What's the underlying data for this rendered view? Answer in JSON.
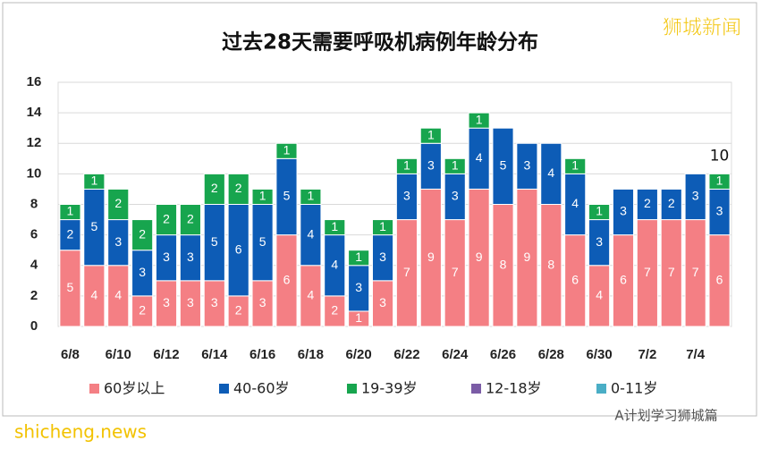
{
  "chart_data": {
    "type": "bar",
    "stacked": true,
    "title": "过去28天需要呼吸机病例年龄分布",
    "categories": [
      "6/8",
      null,
      "6/10",
      null,
      "6/12",
      null,
      "6/14",
      null,
      "6/16",
      null,
      "6/18",
      null,
      "6/20",
      null,
      "6/22",
      null,
      "6/24",
      null,
      "6/26",
      null,
      "6/28",
      null,
      "6/30",
      null,
      "7/2",
      null,
      "7/4",
      null
    ],
    "series": [
      {
        "name": "60岁以上",
        "color": "#f47f84",
        "values": [
          5,
          4,
          4,
          2,
          3,
          3,
          3,
          2,
          3,
          6,
          4,
          2,
          1,
          3,
          7,
          9,
          7,
          9,
          8,
          9,
          8,
          6,
          4,
          6,
          7,
          7,
          7,
          6
        ]
      },
      {
        "name": "40-60岁",
        "color": "#0d5cb6",
        "values": [
          2,
          5,
          3,
          3,
          3,
          3,
          5,
          6,
          5,
          5,
          4,
          4,
          3,
          3,
          3,
          3,
          3,
          4,
          5,
          3,
          4,
          4,
          3,
          3,
          2,
          2,
          3,
          3
        ]
      },
      {
        "name": "19-39岁",
        "color": "#17a54e",
        "values": [
          1,
          1,
          2,
          2,
          2,
          2,
          2,
          2,
          1,
          1,
          1,
          1,
          1,
          1,
          1,
          1,
          1,
          1,
          null,
          null,
          null,
          1,
          1,
          null,
          null,
          null,
          null,
          1
        ]
      },
      {
        "name": "12-18岁",
        "color": "#7b5ca6",
        "values": [
          null,
          null,
          null,
          null,
          null,
          null,
          null,
          null,
          null,
          null,
          null,
          null,
          null,
          null,
          null,
          null,
          null,
          null,
          null,
          null,
          null,
          null,
          null,
          null,
          null,
          null,
          null,
          null
        ]
      },
      {
        "name": "0-11岁",
        "color": "#4aaec6",
        "values": [
          null,
          null,
          null,
          null,
          null,
          null,
          null,
          null,
          null,
          null,
          null,
          null,
          null,
          null,
          null,
          null,
          null,
          null,
          null,
          null,
          null,
          null,
          null,
          null,
          null,
          null,
          null,
          null
        ]
      }
    ],
    "last_total_label": "10",
    "ylim": [
      0,
      16
    ],
    "yticks": [
      0,
      2,
      4,
      6,
      8,
      10,
      12,
      14,
      16
    ],
    "grid": true
  },
  "watermarks": {
    "brand": "狮城新闻",
    "site": "shicheng.news",
    "account": "A计划学习狮城篇"
  }
}
